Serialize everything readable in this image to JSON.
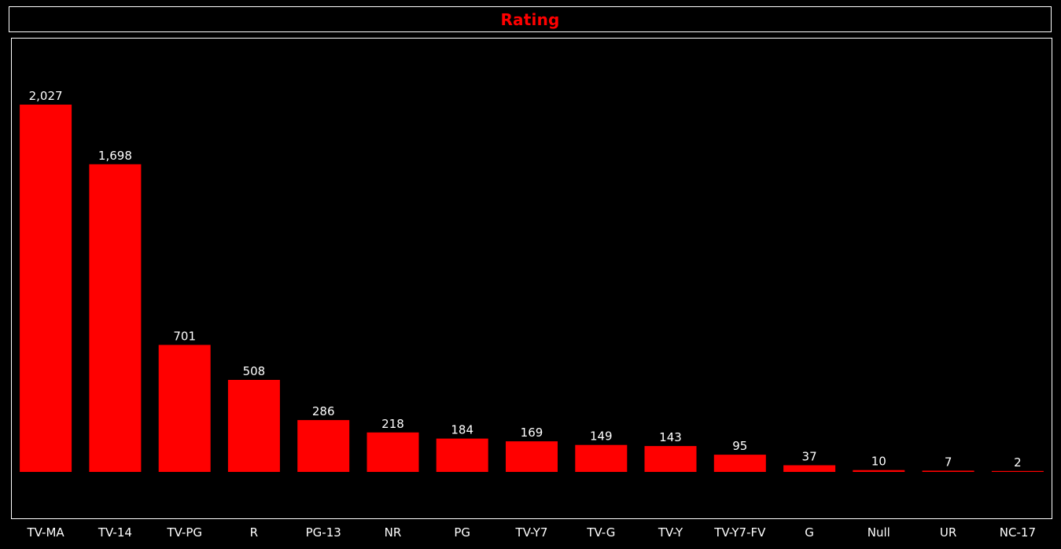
{
  "chart_data": {
    "type": "bar",
    "title": "Rating",
    "categories": [
      "TV-MA",
      "TV-14",
      "TV-PG",
      "R",
      "PG-13",
      "NR",
      "PG",
      "TV-Y7",
      "TV-G",
      "TV-Y",
      "TV-Y7-FV",
      "G",
      "Null",
      "UR",
      "NC-17"
    ],
    "values": [
      2027,
      1698,
      701,
      508,
      286,
      218,
      184,
      169,
      149,
      143,
      95,
      37,
      10,
      7,
      2
    ],
    "value_labels": [
      "2,027",
      "1,698",
      "701",
      "508",
      "286",
      "218",
      "184",
      "169",
      "149",
      "143",
      "95",
      "37",
      "10",
      "7",
      "2"
    ],
    "xlabel": "",
    "ylabel": "",
    "ylim": [
      0,
      2400
    ],
    "grid": false,
    "legend": "none",
    "colors": {
      "bar": "#ff0000",
      "title": "#ff0000",
      "background": "#000000",
      "text": "#ffffff",
      "border": "#ffffff"
    }
  }
}
